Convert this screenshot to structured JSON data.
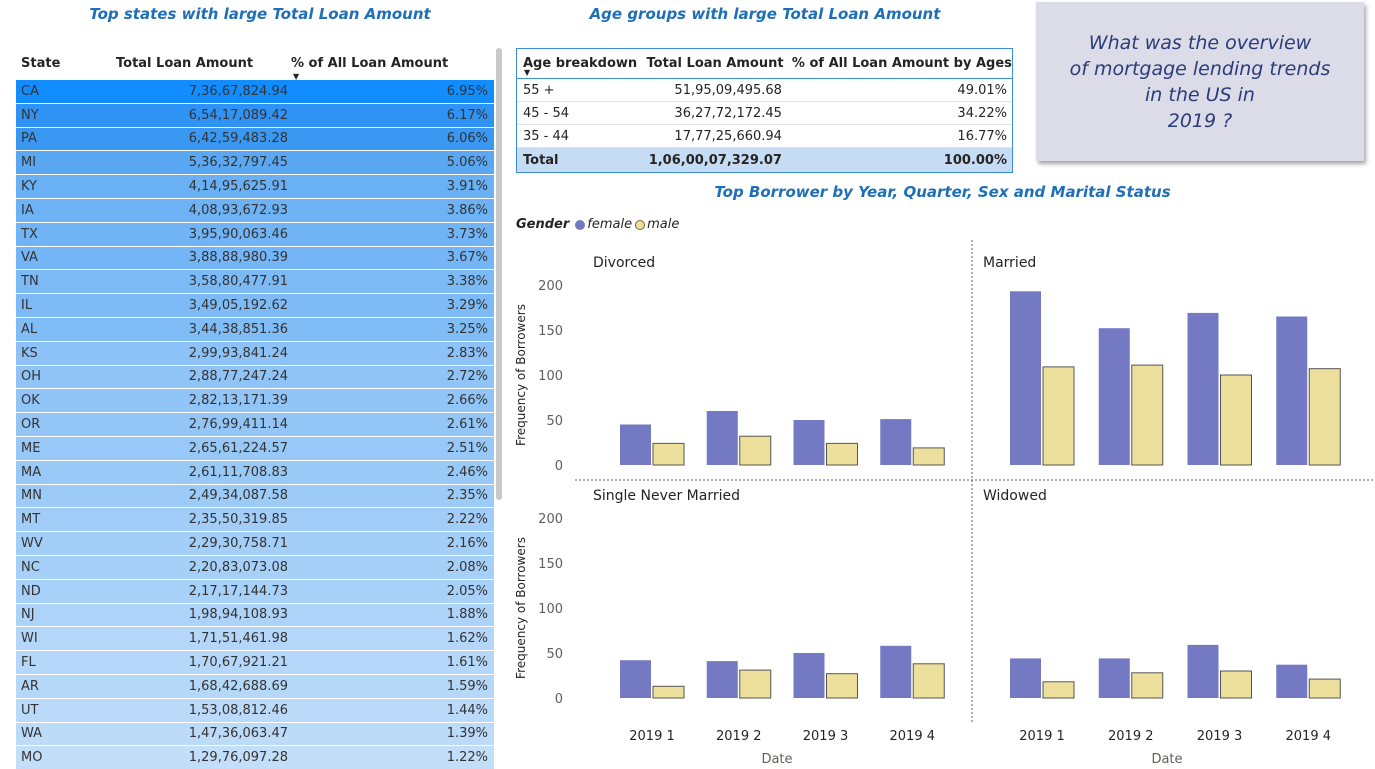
{
  "states_table": {
    "title": "Top states with large Total Loan Amount",
    "columns": [
      "State",
      "Total Loan Amount",
      "% of All Loan Amount"
    ],
    "rows": [
      [
        "CA",
        "7,36,67,824.94",
        "6.95%"
      ],
      [
        "NY",
        "6,54,17,089.42",
        "6.17%"
      ],
      [
        "PA",
        "6,42,59,483.28",
        "6.06%"
      ],
      [
        "MI",
        "5,36,32,797.45",
        "5.06%"
      ],
      [
        "KY",
        "4,14,95,625.91",
        "3.91%"
      ],
      [
        "IA",
        "4,08,93,672.93",
        "3.86%"
      ],
      [
        "TX",
        "3,95,90,063.46",
        "3.73%"
      ],
      [
        "VA",
        "3,88,88,980.39",
        "3.67%"
      ],
      [
        "TN",
        "3,58,80,477.91",
        "3.38%"
      ],
      [
        "IL",
        "3,49,05,192.62",
        "3.29%"
      ],
      [
        "AL",
        "3,44,38,851.36",
        "3.25%"
      ],
      [
        "KS",
        "2,99,93,841.24",
        "2.83%"
      ],
      [
        "OH",
        "2,88,77,247.24",
        "2.72%"
      ],
      [
        "OK",
        "2,82,13,171.39",
        "2.66%"
      ],
      [
        "OR",
        "2,76,99,411.14",
        "2.61%"
      ],
      [
        "ME",
        "2,65,61,224.57",
        "2.51%"
      ],
      [
        "MA",
        "2,61,11,708.83",
        "2.46%"
      ],
      [
        "MN",
        "2,49,34,087.58",
        "2.35%"
      ],
      [
        "MT",
        "2,35,50,319.85",
        "2.22%"
      ],
      [
        "WV",
        "2,29,30,758.71",
        "2.16%"
      ],
      [
        "NC",
        "2,20,83,073.08",
        "2.08%"
      ],
      [
        "ND",
        "2,17,17,144.73",
        "2.05%"
      ],
      [
        "NJ",
        "1,98,94,108.93",
        "1.88%"
      ],
      [
        "WI",
        "1,71,51,461.98",
        "1.62%"
      ],
      [
        "FL",
        "1,70,67,921.21",
        "1.61%"
      ],
      [
        "AR",
        "1,68,42,688.69",
        "1.59%"
      ],
      [
        "UT",
        "1,53,08,812.46",
        "1.44%"
      ],
      [
        "WA",
        "1,47,36,063.47",
        "1.39%"
      ],
      [
        "MO",
        "1,29,76,097.28",
        "1.22%"
      ]
    ],
    "row_colors": [
      "#118dff",
      "#2f93f6",
      "#3b98f2",
      "#5aa8f3",
      "#69b0f5",
      "#6cb2f5",
      "#71b4f5",
      "#73b5f6",
      "#7cbaf6",
      "#7ebbf6",
      "#80bcf6",
      "#8cc2f7",
      "#90c4f7",
      "#92c5f7",
      "#93c6f7",
      "#97c8f7",
      "#98c9f7",
      "#9ccbf8",
      "#a1cdf8",
      "#a3cef8",
      "#a6d0f8",
      "#a7d1f8",
      "#add3f8",
      "#b4d7f9",
      "#b5d7f9",
      "#b5d8f9",
      "#bbdaf9",
      "#bcdbf9",
      "#c2def9"
    ]
  },
  "age_table": {
    "title": "Age groups with large Total Loan Amount",
    "columns": [
      "Age breakdown",
      "Total Loan Amount",
      "% of All Loan Amount by Ages"
    ],
    "rows": [
      [
        "55 +",
        "51,95,09,495.68",
        "49.01%"
      ],
      [
        "45 - 54",
        "36,27,72,172.45",
        "34.22%"
      ],
      [
        "35 - 44",
        "17,77,25,660.94",
        "16.77%"
      ]
    ],
    "total": [
      "Total",
      "1,06,00,07,329.07",
      "100.00%"
    ]
  },
  "question": {
    "text": "What was the overview\nof mortgage lending trends\nin the US in\n2019 ?"
  },
  "legend": {
    "title": "Gender",
    "items": [
      {
        "label": "female",
        "color": "#7479c4"
      },
      {
        "label": "male",
        "color": "#ede09d"
      }
    ]
  },
  "chart_data": {
    "type": "bar",
    "title": "Top Borrower by Year, Quarter, Sex and Marital Status",
    "xlabel": "Date",
    "ylabel": "Frequency of Borrowers",
    "categories": [
      "2019 1",
      "2019 2",
      "2019 3",
      "2019 4"
    ],
    "ylim": [
      0,
      200
    ],
    "yticks": [
      0,
      50,
      100,
      150,
      200
    ],
    "series_colors": {
      "female": "#7479c4",
      "male": "#ede09d"
    },
    "panels": [
      {
        "name": "Divorced",
        "series": [
          {
            "name": "female",
            "values": [
              45,
              60,
              50,
              51
            ]
          },
          {
            "name": "male",
            "values": [
              24,
              32,
              24,
              19
            ]
          }
        ]
      },
      {
        "name": "Married",
        "series": [
          {
            "name": "female",
            "values": [
              193,
              152,
              169,
              165
            ]
          },
          {
            "name": "male",
            "values": [
              109,
              111,
              100,
              107
            ]
          }
        ]
      },
      {
        "name": "Single Never Married",
        "series": [
          {
            "name": "female",
            "values": [
              42,
              41,
              50,
              58
            ]
          },
          {
            "name": "male",
            "values": [
              13,
              31,
              27,
              38
            ]
          }
        ]
      },
      {
        "name": "Widowed",
        "series": [
          {
            "name": "female",
            "values": [
              44,
              44,
              59,
              37
            ]
          },
          {
            "name": "male",
            "values": [
              18,
              28,
              30,
              21
            ]
          }
        ]
      }
    ]
  }
}
